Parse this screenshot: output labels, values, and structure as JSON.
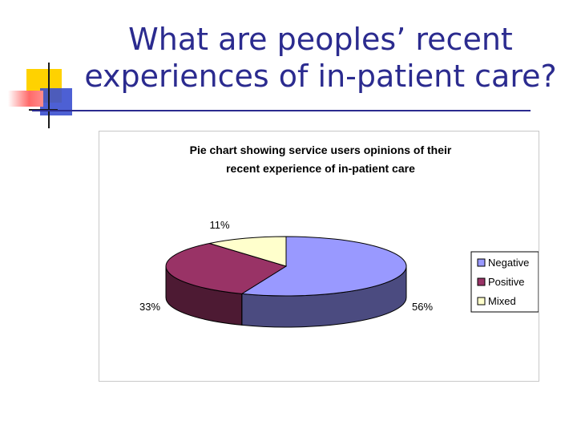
{
  "slide": {
    "title": "What are peoples’ recent experiences of in-patient care?"
  },
  "chart_data": {
    "type": "pie",
    "title": "Pie chart showing service users opinions of their recent experience of in-patient care",
    "title_lines": [
      "Pie chart showing service users opinions of their",
      "recent experience of in-patient care"
    ],
    "categories": [
      "Negative",
      "Positive",
      "Mixed"
    ],
    "values": [
      56,
      33,
      11
    ],
    "data_labels": [
      "56%",
      "33%",
      "11%"
    ],
    "colors": [
      "#9999ff",
      "#993366",
      "#ffffcc"
    ],
    "side_colors": [
      "#4b4b80",
      "#4d1a33",
      "#80806a"
    ],
    "legend_position": "right",
    "three_d": true
  }
}
